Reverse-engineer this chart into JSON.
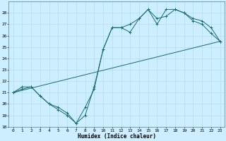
{
  "xlabel": "Humidex (Indice chaleur)",
  "background_color": "#cceeff",
  "line_color": "#1a6b6b",
  "grid_color": "#aadddd",
  "xlim": [
    -0.5,
    23.5
  ],
  "ylim": [
    18,
    29
  ],
  "yticks": [
    18,
    19,
    20,
    21,
    22,
    23,
    24,
    25,
    26,
    27,
    28
  ],
  "xticks": [
    0,
    1,
    2,
    3,
    4,
    5,
    6,
    7,
    8,
    9,
    10,
    11,
    12,
    13,
    14,
    15,
    16,
    17,
    18,
    19,
    20,
    21,
    22,
    23
  ],
  "line1_x": [
    0,
    1,
    2,
    3,
    4,
    5,
    6,
    7,
    8,
    9,
    10,
    11,
    12,
    13,
    14,
    15,
    16,
    17,
    18,
    19,
    20,
    21,
    22,
    23
  ],
  "line1_y": [
    21,
    21.5,
    21.5,
    20.7,
    20,
    19.5,
    19,
    18.3,
    19.7,
    21.3,
    24.8,
    26.7,
    26.7,
    26.3,
    27.5,
    28.3,
    27.5,
    27.7,
    28.3,
    28,
    27.3,
    27,
    26.2,
    25.5
  ],
  "line2_x": [
    0,
    1,
    2,
    3,
    4,
    5,
    6,
    7,
    8,
    9,
    10,
    11,
    12,
    13,
    14,
    15,
    16,
    17,
    18,
    19,
    20,
    21,
    22,
    23
  ],
  "line2_y": [
    21,
    21.3,
    21.5,
    20.7,
    20,
    19.7,
    19.2,
    18.3,
    19,
    21.5,
    24.8,
    26.7,
    26.7,
    27,
    27.5,
    28.3,
    27,
    28.3,
    28.3,
    28,
    27.5,
    27.3,
    26.7,
    25.5
  ],
  "line3_x": [
    0,
    23
  ],
  "line3_y": [
    21,
    25.5
  ]
}
